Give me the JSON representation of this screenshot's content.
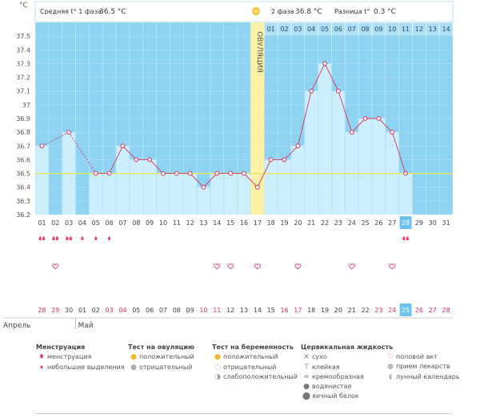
{
  "header": {
    "phase1_label": "Средняя t° 1 фаза",
    "phase1_value": "36.5 °C",
    "phase2_label": "2 фаза",
    "phase2_value": "36.8 °C",
    "diff_label": "Разница t°",
    "diff_value": "0.3 °C",
    "unit": "°C",
    "ovulation_label": "ОВУЛЯЦИЯ"
  },
  "colors": {
    "sky": "#8fd3f3",
    "bar": "#cdeefc",
    "line": "#d9335c",
    "ovulation": "#fdf1a6",
    "today": "#6cc3ec",
    "coverline": "#e3e85c"
  },
  "chart_data": {
    "type": "line",
    "ylim": [
      36.2,
      37.6
    ],
    "y_ticks": [
      "36.2",
      "36.3",
      "36.4",
      "36.5",
      "36.6",
      "36.7",
      "36.8",
      "36.9",
      "37",
      "37.1",
      "37.2",
      "37.3",
      "37.4",
      "37.5"
    ],
    "coverline": 36.5,
    "ovulation_day": 17,
    "today_day": 28,
    "cycle_days": [
      "01",
      "02",
      "03",
      "04",
      "05",
      "06",
      "07",
      "08",
      "09",
      "10",
      "11",
      "12",
      "13",
      "14",
      "15",
      "16",
      "17",
      "18",
      "19",
      "20",
      "21",
      "22",
      "23",
      "24",
      "25",
      "26",
      "27",
      "28",
      "29",
      "30",
      "31"
    ],
    "temperatures": [
      36.7,
      null,
      36.8,
      null,
      36.5,
      36.5,
      36.7,
      36.6,
      36.6,
      36.5,
      36.5,
      36.5,
      36.4,
      36.5,
      36.5,
      36.5,
      36.4,
      36.6,
      36.6,
      36.7,
      37.1,
      37.3,
      37.1,
      36.8,
      36.9,
      36.9,
      36.8,
      36.5,
      null,
      null,
      null
    ],
    "phase2_days": [
      "01",
      "02",
      "03",
      "04",
      "05",
      "06",
      "07",
      "08",
      "09",
      "10",
      "11",
      "12",
      "13",
      "14"
    ],
    "menstruation": [
      1,
      1,
      1,
      0,
      0,
      0,
      0,
      0,
      0,
      0,
      0,
      0,
      0,
      0,
      0,
      0,
      0,
      0,
      0,
      0,
      0,
      0,
      0,
      0,
      0,
      0,
      0,
      1,
      0,
      0,
      0
    ],
    "spotting": [
      0,
      0,
      0,
      1,
      1,
      1,
      0,
      0,
      0,
      0,
      0,
      0,
      0,
      0,
      0,
      0,
      0,
      0,
      0,
      0,
      0,
      0,
      0,
      0,
      0,
      0,
      0,
      0,
      0,
      0,
      0
    ],
    "intercourse_days": [
      2,
      14,
      15,
      17,
      20,
      24,
      27
    ],
    "dates": [
      "28",
      "29",
      "30",
      "01",
      "02",
      "03",
      "04",
      "05",
      "06",
      "07",
      "08",
      "09",
      "10",
      "11",
      "12",
      "13",
      "14",
      "15",
      "16",
      "17",
      "18",
      "19",
      "20",
      "21",
      "22",
      "23",
      "24",
      "25",
      "26",
      "27",
      "28"
    ],
    "weekend_dates": [
      1,
      2,
      6,
      7,
      13,
      14,
      19,
      20,
      26,
      27
    ],
    "month_labels": [
      "Апрель",
      "Май"
    ]
  },
  "legend": {
    "menstruation": {
      "title": "Менструация",
      "items": [
        "менструация",
        "небольшие выделения"
      ]
    },
    "ovulation_test": {
      "title": "Тест на овуляцию",
      "items": [
        "положительный",
        "отрицательный"
      ]
    },
    "pregnancy_test": {
      "title": "Тест на беременность",
      "items": [
        "положительный",
        "отрицательный",
        "слабоположительный"
      ]
    },
    "cervical": {
      "title": "Цервикальная жидкость",
      "items": [
        "сухо",
        "клейкая",
        "кремообразная",
        "водянистая",
        "яичный белок"
      ]
    },
    "other": {
      "items": [
        "половой акт",
        "прием лекарств",
        "лунный календарь"
      ]
    }
  }
}
